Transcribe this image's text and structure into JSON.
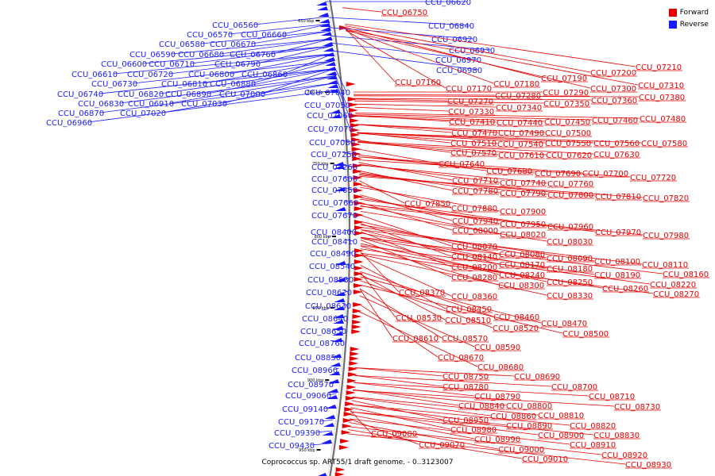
{
  "caption": "Coprococcus sp. ART55/1 draft genome. - 0..3123007",
  "legend": [
    {
      "label": "Forward",
      "color": "#e60000"
    },
    {
      "label": "Reverse",
      "color": "#1a1aff"
    }
  ],
  "colors": {
    "forward": "#e60000",
    "reverse": "#1a1aff",
    "axis": "#707070"
  },
  "ticks": [
    "650 kbp",
    "700 kbp",
    "750 kbp",
    "800 kbp",
    "850 kbp",
    "900 kbp",
    "950 kbp"
  ],
  "reverse_genes": [
    "CCU_06560",
    "CCU_06570",
    "CCU_06580",
    "CCU_06590",
    "CCU_06600",
    "CCU_06610",
    "CCU_06620",
    "CCU_06660",
    "CCU_06670",
    "CCU_06680",
    "CCU_06710",
    "CCU_06720",
    "CCU_06730",
    "CCU_06740",
    "CCU_06760",
    "CCU_06790",
    "CCU_06800",
    "CCU_06810",
    "CCU_06820",
    "CCU_06830",
    "CCU_06840",
    "CCU_06860",
    "CCU_06870",
    "CCU_06880",
    "CCU_06890",
    "CCU_06910",
    "CCU_06920",
    "CCU_06930",
    "CCU_06960",
    "CCU_06970",
    "CCU_06980",
    "CCU_07000",
    "CCU_07020",
    "CCU_07030",
    "CCU_07040",
    "CCU_07050",
    "CCU_07060",
    "CCU_07070",
    "CCU_07080",
    "CCU_07250",
    "CCU_07260",
    "CCU_07600",
    "CCU_07650",
    "CCU_07660",
    "CCU_07670",
    "CCU_08400",
    "CCU_08410",
    "CCU_08490",
    "CCU_08540",
    "CCU_08580",
    "CCU_08620",
    "CCU_08630",
    "CCU_08640",
    "CCU_08650",
    "CCU_08760",
    "CCU_08850",
    "CCU_08960",
    "CCU_08970",
    "CCU_09060",
    "CCU_09140",
    "CCU_09170",
    "CCU_09390",
    "CCU_09430"
  ],
  "forward_genes": [
    "CCU_06750",
    "CCU_07160",
    "CCU_07170",
    "CCU_07180",
    "CCU_07190",
    "CCU_07200",
    "CCU_07210",
    "CCU_07270",
    "CCU_07280",
    "CCU_07290",
    "CCU_07300",
    "CCU_07310",
    "CCU_07330",
    "CCU_07340",
    "CCU_07350",
    "CCU_07360",
    "CCU_07380",
    "CCU_07410",
    "CCU_07440",
    "CCU_07450",
    "CCU_07460",
    "CCU_07470",
    "CCU_07480",
    "CCU_07490",
    "CCU_07500",
    "CCU_07510",
    "CCU_07540",
    "CCU_07550",
    "CCU_07560",
    "CCU_07570",
    "CCU_07580",
    "CCU_07610",
    "CCU_07620",
    "CCU_07630",
    "CCU_07640",
    "CCU_07680",
    "CCU_07690",
    "CCU_07700",
    "CCU_07710",
    "CCU_07720",
    "CCU_07740",
    "CCU_07760",
    "CCU_07780",
    "CCU_07790",
    "CCU_07800",
    "CCU_07810",
    "CCU_07820",
    "CCU_07850",
    "CCU_07880",
    "CCU_07900",
    "CCU_07940",
    "CCU_07950",
    "CCU_07960",
    "CCU_07970",
    "CCU_07980",
    "CCU_08000",
    "CCU_08020",
    "CCU_08030",
    "CCU_08070",
    "CCU_08080",
    "CCU_08090",
    "CCU_08100",
    "CCU_08110",
    "CCU_08140",
    "CCU_08160",
    "CCU_08170",
    "CCU_08180",
    "CCU_08190",
    "CCU_08200",
    "CCU_08220",
    "CCU_08240",
    "CCU_08250",
    "CCU_08260",
    "CCU_08270",
    "CCU_08280",
    "CCU_08300",
    "CCU_08330",
    "CCU_08360",
    "CCU_08370",
    "CCU_08450",
    "CCU_08460",
    "CCU_08470",
    "CCU_08500",
    "CCU_08510",
    "CCU_08520",
    "CCU_08530",
    "CCU_08570",
    "CCU_08590",
    "CCU_08610",
    "CCU_08670",
    "CCU_08680",
    "CCU_08690",
    "CCU_08700",
    "CCU_08710",
    "CCU_08730",
    "CCU_08750",
    "CCU_08780",
    "CCU_08790",
    "CCU_08800",
    "CCU_08810",
    "CCU_08820",
    "CCU_08830",
    "CCU_08840",
    "CCU_08860",
    "CCU_08890",
    "CCU_08900",
    "CCU_08910",
    "CCU_08920",
    "CCU_08930",
    "CCU_08950",
    "CCU_08980",
    "CCU_08990",
    "CCU_09000",
    "CCU_09010",
    "CCU_09070",
    "CCU_09080"
  ]
}
